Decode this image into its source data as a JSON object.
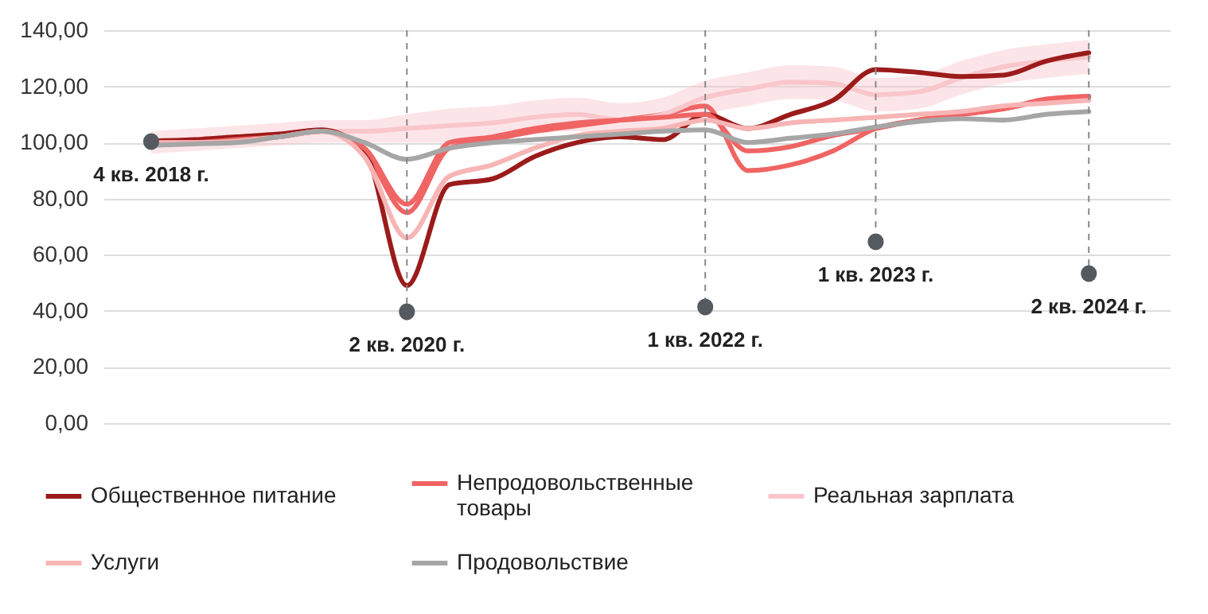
{
  "chart_data": {
    "type": "line",
    "categories": [
      "4 кв. 2018 г.",
      null,
      null,
      null,
      null,
      null,
      "2 кв. 2020 г.",
      null,
      null,
      null,
      null,
      null,
      null,
      "1 кв. 2022 г.",
      null,
      null,
      null,
      "1 кв. 2023 г.",
      null,
      null,
      null,
      null,
      "2 кв. 2024 г."
    ],
    "series": [
      {
        "name": "Общественное питание",
        "color": "#9b1b1b",
        "values": [
          100.5,
          101,
          102,
          103,
          104.5,
          97,
          49,
          85,
          87,
          95,
          100,
          102,
          101,
          110,
          105,
          110,
          115,
          126,
          125,
          123.5,
          124,
          129,
          132
        ]
      },
      {
        "name": "Непродовольственные товары",
        "color": "#f06464",
        "values": [
          100,
          100,
          101,
          102,
          104,
          98,
          78,
          100,
          102,
          105,
          107,
          108,
          109,
          110,
          97,
          98.5,
          102.5,
          105,
          108,
          110,
          112,
          115.5,
          116.5
        ]
      },
      {
        "name": "Реальная зарплата",
        "color": "#f9c6cb",
        "values": [
          100,
          101,
          102,
          103,
          104,
          104,
          105,
          106,
          107,
          109,
          110,
          108,
          110,
          116,
          119,
          121.5,
          121,
          117,
          118,
          123,
          127,
          129,
          130.5
        ],
        "lower": [
          96,
          97,
          98,
          99,
          100,
          100,
          100,
          100,
          101,
          103,
          104,
          102,
          104,
          110,
          113,
          115.5,
          115,
          111,
          112,
          117,
          121,
          123,
          124.5
        ],
        "upper": [
          104,
          105,
          106,
          107,
          108,
          108,
          110,
          112,
          113,
          115,
          116,
          114,
          116,
          122,
          125,
          127.5,
          127,
          123,
          124,
          129,
          133,
          135,
          136.5
        ]
      },
      {
        "name": "Услуги",
        "color": "#f7b5b5",
        "values": [
          100,
          100,
          100.5,
          102,
          104,
          95,
          66,
          88,
          92,
          98,
          102.5,
          104,
          105,
          108,
          105,
          107,
          108,
          109,
          110,
          111,
          113,
          114,
          115
        ]
      },
      {
        "name": "Продовольствие",
        "color": "#a6a6a6",
        "values": [
          99,
          99.5,
          100,
          102,
          104,
          100,
          94,
          98,
          100,
          101,
          102,
          103,
          104,
          104.5,
          100,
          101.5,
          103,
          105.5,
          107.5,
          108.5,
          108,
          110,
          111
        ]
      },
      {
        "color": "#f06464",
        "values": [
          100,
          100,
          101,
          102,
          104,
          97,
          75,
          98,
          101,
          104,
          106,
          108,
          110,
          113,
          90,
          92,
          97,
          105,
          108,
          110,
          112,
          115,
          116
        ]
      }
    ],
    "ylim": [
      0,
      140
    ],
    "yticks": [
      {
        "value": 0,
        "label": "0,00"
      },
      {
        "value": 20,
        "label": "20,00"
      },
      {
        "value": 40,
        "label": "40,00"
      },
      {
        "value": 60,
        "label": "60,00"
      },
      {
        "value": 80,
        "label": "80,00"
      },
      {
        "value": 100,
        "label": "100,00"
      },
      {
        "value": 120,
        "label": "120,00"
      },
      {
        "value": 140,
        "label": "140,00"
      }
    ],
    "grid": "y",
    "legend": "bottom",
    "ref_lines": [
      {
        "axis": "x",
        "value": "2 кв. 2020 г.",
        "label": null,
        "color": "#888888",
        "line_style": "dashed"
      },
      {
        "axis": "x",
        "value": "1 кв. 2022 г.",
        "label": null,
        "color": "#888888",
        "line_style": "dashed"
      },
      {
        "axis": "x",
        "value": "1 кв. 2023 г.",
        "label": null,
        "color": "#888888",
        "line_style": "dashed"
      },
      {
        "axis": "x",
        "value": "2 кв. 2024 г.",
        "label": null,
        "color": "#888888",
        "line_style": "dashed"
      }
    ]
  }
}
